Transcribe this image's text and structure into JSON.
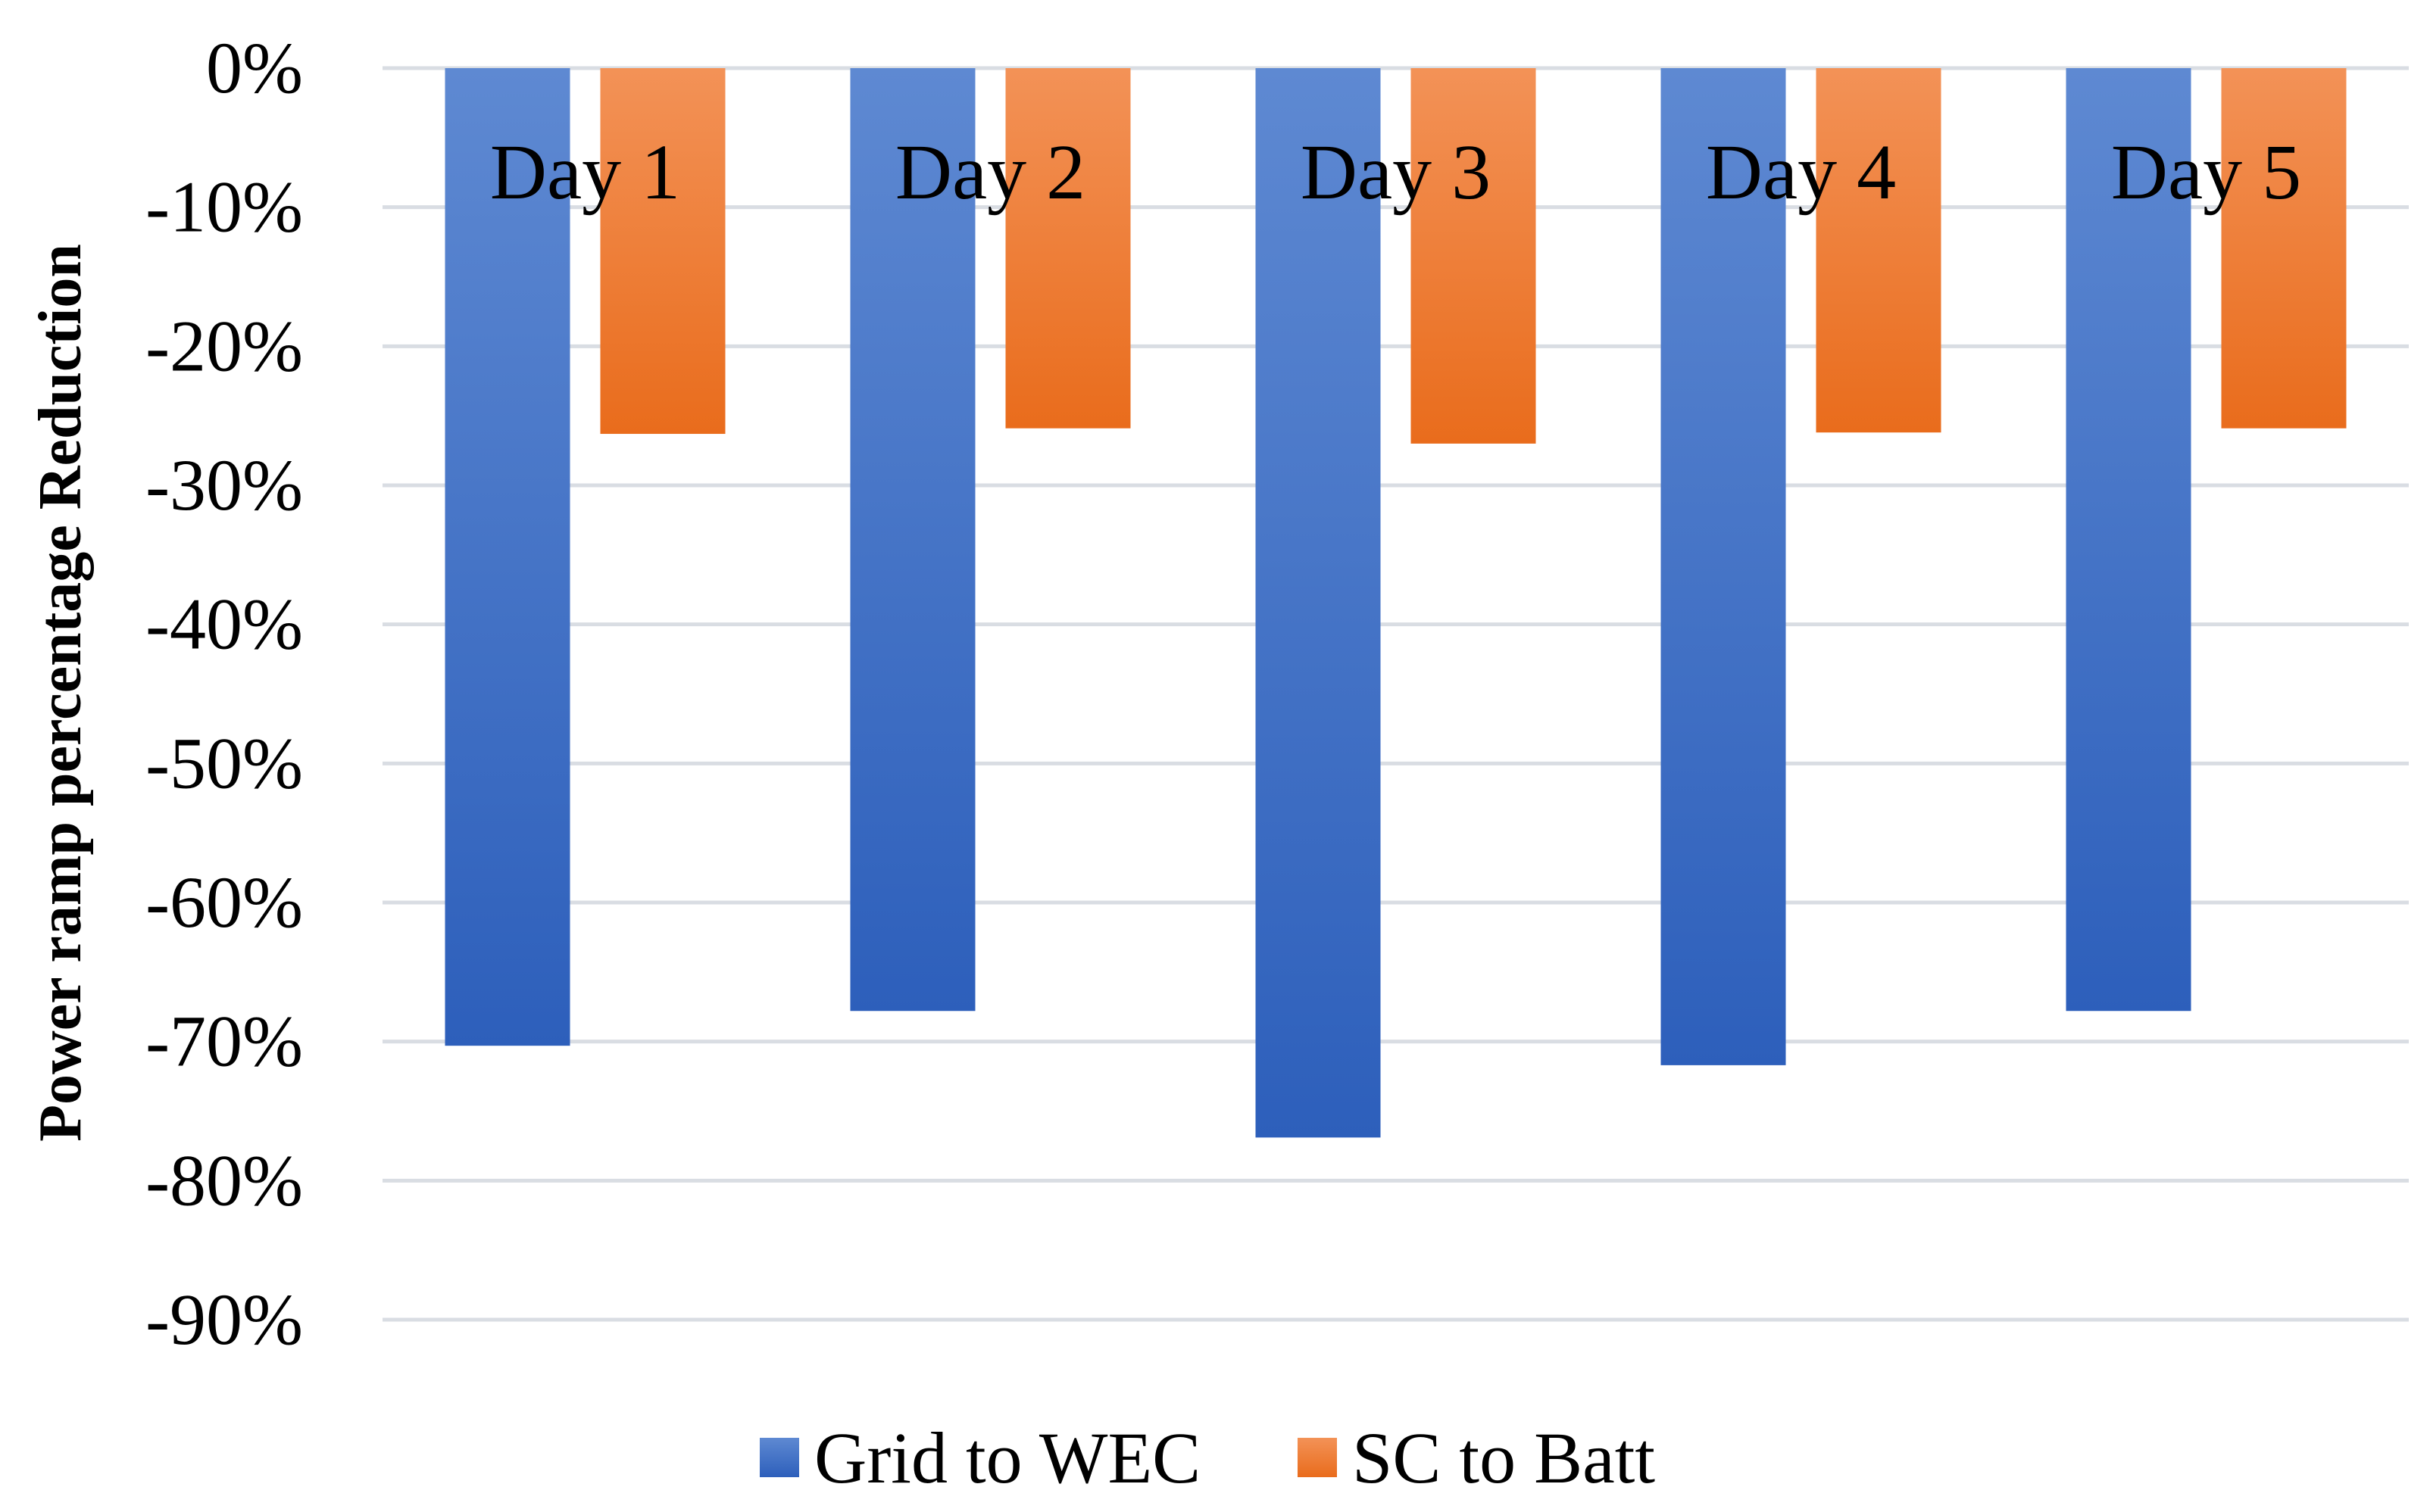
{
  "chart_data": {
    "type": "bar",
    "title": "",
    "xlabel": "",
    "ylabel": "Power ramp percentage Reduction",
    "categories": [
      "Day 1",
      "Day 2",
      "Day 3",
      "Day 4",
      "Day 5"
    ],
    "series": [
      {
        "name": "Grid to WEC",
        "color": "#3a6fc4",
        "values": [
          -70.3,
          -67.8,
          -76.9,
          -71.7,
          -67.8
        ]
      },
      {
        "name": "SC to Batt",
        "color": "#ee7a2c",
        "values": [
          -26.3,
          -25.9,
          -27.0,
          -26.2,
          -25.9
        ]
      }
    ],
    "ylim": [
      -90,
      0
    ],
    "yticks": [
      0,
      -10,
      -20,
      -30,
      -40,
      -50,
      -60,
      -70,
      -80,
      -90
    ],
    "ytick_labels": [
      "0%",
      "-10%",
      "-20%",
      "-30%",
      "-40%",
      "-50%",
      "-60%",
      "-70%",
      "-80%",
      "-90%"
    ],
    "grid": true,
    "legend": "bottom-center"
  }
}
